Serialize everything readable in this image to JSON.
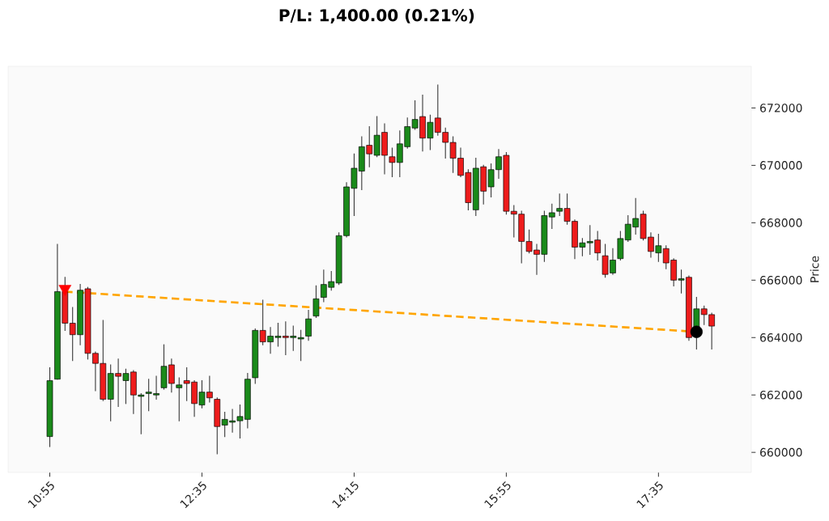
{
  "chart_data": {
    "type": "candlestick",
    "title": "P/L: 1,400.00 (0.21%)",
    "ylabel": "Price",
    "x": [
      10.9167,
      11,
      11.0833,
      11.1667,
      11.25,
      11.3333,
      11.4167,
      11.5,
      11.5833,
      11.6667,
      11.75,
      11.8333,
      11.9167,
      12,
      12.0833,
      12.1667,
      12.25,
      12.3333,
      12.4167,
      12.5,
      12.5833,
      12.6667,
      12.75,
      12.8333,
      12.9167,
      13,
      13.0833,
      13.1667,
      13.25,
      13.3333,
      13.4167,
      13.5,
      13.5833,
      13.6667,
      13.75,
      13.8333,
      13.9167,
      14,
      14.0833,
      14.1667,
      14.25,
      14.3333,
      14.4167,
      14.5,
      14.5833,
      14.6667,
      14.75,
      14.8333,
      14.9167,
      15,
      15.0833,
      15.1667,
      15.25,
      15.3333,
      15.4167,
      15.5,
      15.5833,
      15.6667,
      15.75,
      15.8333,
      15.9167,
      16,
      16.0833,
      16.1667,
      16.25,
      16.3333,
      16.4167,
      16.5,
      16.5833,
      16.6667,
      16.75,
      16.8333,
      16.9167,
      17,
      17.0833,
      17.1667,
      17.25,
      17.3333,
      17.4167,
      17.5,
      17.5833,
      17.6667,
      17.75,
      17.8333,
      17.9167,
      18,
      18.0833,
      18.1667
    ],
    "ohlc": [
      [
        660550,
        662950,
        660200,
        662500
      ],
      [
        662550,
        667250,
        662550,
        665600
      ],
      [
        665600,
        666100,
        664250,
        664500
      ],
      [
        664500,
        665050,
        663200,
        664100
      ],
      [
        664100,
        665850,
        663750,
        665650
      ],
      [
        665700,
        665750,
        663250,
        663450
      ],
      [
        663450,
        663500,
        662150,
        663100
      ],
      [
        663100,
        664600,
        661800,
        661850
      ],
      [
        661850,
        663050,
        661100,
        662750
      ],
      [
        662750,
        663250,
        661600,
        662650
      ],
      [
        662500,
        662900,
        661700,
        662750
      ],
      [
        662800,
        662850,
        661350,
        662000
      ],
      [
        661950,
        662050,
        660650,
        662000
      ],
      [
        662050,
        662550,
        661450,
        662100
      ],
      [
        662000,
        662650,
        661850,
        662050
      ],
      [
        662250,
        663750,
        662200,
        663000
      ],
      [
        663050,
        663250,
        662100,
        662400
      ],
      [
        662250,
        662600,
        661100,
        662350
      ],
      [
        662500,
        662950,
        661800,
        662400
      ],
      [
        662450,
        662500,
        661250,
        661700
      ],
      [
        661650,
        662500,
        661550,
        662100
      ],
      [
        662100,
        662650,
        661750,
        661900
      ],
      [
        661850,
        661900,
        659950,
        660900
      ],
      [
        660950,
        661400,
        660550,
        661150
      ],
      [
        661050,
        661500,
        660700,
        661100
      ],
      [
        661100,
        661650,
        660500,
        661250
      ],
      [
        661150,
        662750,
        660850,
        662550
      ],
      [
        662600,
        664300,
        662400,
        664250
      ],
      [
        664250,
        665300,
        663750,
        663850
      ],
      [
        663850,
        664350,
        663450,
        664050
      ],
      [
        664000,
        664500,
        663700,
        664050
      ],
      [
        664050,
        664550,
        663400,
        664000
      ],
      [
        664000,
        664400,
        663550,
        664050
      ],
      [
        663950,
        664250,
        663200,
        664000
      ],
      [
        664050,
        664950,
        663900,
        664650
      ],
      [
        664750,
        665800,
        664700,
        665350
      ],
      [
        665400,
        666350,
        665250,
        665850
      ],
      [
        665750,
        666300,
        665650,
        665950
      ],
      [
        665900,
        667650,
        665850,
        667550
      ],
      [
        667550,
        669400,
        667500,
        669250
      ],
      [
        669200,
        670400,
        668250,
        669900
      ],
      [
        669800,
        671000,
        669150,
        670650
      ],
      [
        670700,
        671350,
        669950,
        670400
      ],
      [
        670350,
        671700,
        670300,
        671050
      ],
      [
        671150,
        671450,
        669700,
        670350
      ],
      [
        670300,
        670600,
        669600,
        670100
      ],
      [
        670100,
        671200,
        669600,
        670750
      ],
      [
        670650,
        671650,
        670600,
        671350
      ],
      [
        671300,
        672250,
        671250,
        671600
      ],
      [
        671700,
        672450,
        670500,
        670950
      ],
      [
        670950,
        671750,
        670550,
        671500
      ],
      [
        671650,
        672800,
        671050,
        671150
      ],
      [
        671150,
        671300,
        670250,
        670800
      ],
      [
        670800,
        671000,
        669750,
        670250
      ],
      [
        670250,
        670600,
        669600,
        669650
      ],
      [
        669750,
        669850,
        668450,
        668700
      ],
      [
        668450,
        670250,
        668250,
        669900
      ],
      [
        669950,
        670000,
        668650,
        669100
      ],
      [
        669250,
        670050,
        668900,
        669850
      ],
      [
        669850,
        670550,
        669550,
        670300
      ],
      [
        670350,
        670450,
        668300,
        668400
      ],
      [
        668400,
        668600,
        667500,
        668300
      ],
      [
        668300,
        668400,
        666600,
        667350
      ],
      [
        667350,
        667750,
        666950,
        667000
      ],
      [
        667050,
        667250,
        666200,
        666900
      ],
      [
        666900,
        668400,
        666650,
        668250
      ],
      [
        668200,
        668650,
        667800,
        668350
      ],
      [
        668400,
        669000,
        668250,
        668500
      ],
      [
        668500,
        669000,
        667950,
        668050
      ],
      [
        668050,
        668100,
        666750,
        667150
      ],
      [
        667150,
        667450,
        666850,
        667300
      ],
      [
        667300,
        667900,
        666900,
        667350
      ],
      [
        667400,
        667700,
        666700,
        666950
      ],
      [
        666850,
        667250,
        666100,
        666200
      ],
      [
        666250,
        667100,
        666200,
        666700
      ],
      [
        666750,
        667700,
        666700,
        667450
      ],
      [
        667400,
        668250,
        667350,
        667950
      ],
      [
        667850,
        668850,
        667600,
        668150
      ],
      [
        668300,
        668400,
        667400,
        667450
      ],
      [
        667500,
        667650,
        666800,
        667000
      ],
      [
        666950,
        667600,
        666650,
        667200
      ],
      [
        667100,
        667200,
        666400,
        666600
      ],
      [
        666700,
        666750,
        665800,
        666000
      ],
      [
        666000,
        666350,
        665550,
        666050
      ],
      [
        666100,
        666150,
        663900,
        664000
      ],
      [
        664200,
        665400,
        663600,
        665000
      ],
      [
        665000,
        665100,
        664450,
        664800
      ],
      [
        664800,
        664850,
        663600,
        664400
      ]
    ],
    "colors": [
      "#1a8a1a",
      "#1a8a1a",
      "#ee1c1c",
      "#ee1c1c",
      "#1a8a1a",
      "#ee1c1c",
      "#ee1c1c",
      "#ee1c1c",
      "#1a8a1a",
      "#ee1c1c",
      "#1a8a1a",
      "#ee1c1c",
      "#1a8a1a",
      "#1a8a1a",
      "#1a8a1a",
      "#1a8a1a",
      "#ee1c1c",
      "#1a8a1a",
      "#ee1c1c",
      "#ee1c1c",
      "#1a8a1a",
      "#ee1c1c",
      "#ee1c1c",
      "#1a8a1a",
      "#1a8a1a",
      "#1a8a1a",
      "#1a8a1a",
      "#1a8a1a",
      "#ee1c1c",
      "#1a8a1a",
      "#1a8a1a",
      "#ee1c1c",
      "#1a8a1a",
      "#1a8a1a",
      "#1a8a1a",
      "#1a8a1a",
      "#1a8a1a",
      "#1a8a1a",
      "#1a8a1a",
      "#1a8a1a",
      "#1a8a1a",
      "#1a8a1a",
      "#ee1c1c",
      "#1a8a1a",
      "#ee1c1c",
      "#ee1c1c",
      "#1a8a1a",
      "#1a8a1a",
      "#1a8a1a",
      "#ee1c1c",
      "#1a8a1a",
      "#ee1c1c",
      "#ee1c1c",
      "#ee1c1c",
      "#ee1c1c",
      "#ee1c1c",
      "#1a8a1a",
      "#ee1c1c",
      "#1a8a1a",
      "#1a8a1a",
      "#ee1c1c",
      "#ee1c1c",
      "#ee1c1c",
      "#ee1c1c",
      "#ee1c1c",
      "#1a8a1a",
      "#1a8a1a",
      "#1a8a1a",
      "#ee1c1c",
      "#ee1c1c",
      "#1a8a1a",
      "#1a8a1a",
      "#ee1c1c",
      "#ee1c1c",
      "#1a8a1a",
      "#1a8a1a",
      "#1a8a1a",
      "#1a8a1a",
      "#ee1c1c",
      "#ee1c1c",
      "#1a8a1a",
      "#ee1c1c",
      "#ee1c1c",
      "#1a8a1a",
      "#ee1c1c",
      "#1a8a1a",
      "#ee1c1c",
      "#ee1c1c"
    ],
    "series": [
      {
        "type": "line",
        "values": [
          null,
          null,
          665600,
          null,
          null,
          null,
          null,
          null,
          null,
          null,
          null,
          null,
          null,
          null,
          null,
          null,
          null,
          null,
          null,
          null,
          null,
          null,
          null,
          null,
          null,
          null,
          null,
          null,
          null,
          null,
          null,
          null,
          null,
          null,
          null,
          null,
          null,
          null,
          null,
          null,
          null,
          null,
          null,
          null,
          null,
          null,
          null,
          null,
          null,
          null,
          null,
          null,
          null,
          null,
          null,
          null,
          null,
          null,
          null,
          null,
          null,
          null,
          null,
          null,
          null,
          null,
          null,
          null,
          null,
          null,
          null,
          null,
          null,
          null,
          null,
          null,
          null,
          null,
          null,
          null,
          null,
          null,
          null,
          null,
          null,
          664200,
          null,
          null
        ],
        "color": "#ffa500",
        "line_style": "dashed"
      },
      {
        "type": "scatter",
        "values": [
          null,
          null,
          665700,
          null,
          null,
          null,
          null,
          null,
          null,
          null,
          null,
          null,
          null,
          null,
          null,
          null,
          null,
          null,
          null,
          null,
          null,
          null,
          null,
          null,
          null,
          null,
          null,
          null,
          null,
          null,
          null,
          null,
          null,
          null,
          null,
          null,
          null,
          null,
          null,
          null,
          null,
          null,
          null,
          null,
          null,
          null,
          null,
          null,
          null,
          null,
          null,
          null,
          null,
          null,
          null,
          null,
          null,
          null,
          null,
          null,
          null,
          null,
          null,
          null,
          null,
          null,
          null,
          null,
          null,
          null,
          null,
          null,
          null,
          null,
          null,
          null,
          null,
          null,
          null,
          null,
          null,
          null,
          null,
          null,
          null,
          null,
          null,
          null
        ],
        "color": "#ff0000",
        "marker": "triangle"
      },
      {
        "type": "scatter",
        "values": [
          null,
          null,
          null,
          null,
          null,
          null,
          null,
          null,
          null,
          null,
          null,
          null,
          null,
          null,
          null,
          null,
          null,
          null,
          null,
          null,
          null,
          null,
          null,
          null,
          null,
          null,
          null,
          null,
          null,
          null,
          null,
          null,
          null,
          null,
          null,
          null,
          null,
          null,
          null,
          null,
          null,
          null,
          null,
          null,
          null,
          null,
          null,
          null,
          null,
          null,
          null,
          null,
          null,
          null,
          null,
          null,
          null,
          null,
          null,
          null,
          null,
          null,
          null,
          null,
          null,
          null,
          null,
          null,
          null,
          null,
          null,
          null,
          null,
          null,
          null,
          null,
          null,
          null,
          null,
          null,
          null,
          null,
          null,
          null,
          null,
          664200,
          null,
          null
        ],
        "color": "#000000",
        "marker": "circle"
      }
    ],
    "xlim": [
      10.46,
      18.6
    ],
    "xticks": [
      {
        "value": 10.9167,
        "label": "10:55"
      },
      {
        "value": 12.5833,
        "label": "12:35"
      },
      {
        "value": 14.25,
        "label": "14:15"
      },
      {
        "value": 15.9167,
        "label": "15:55"
      },
      {
        "value": 17.5833,
        "label": "17:35"
      }
    ],
    "ylim": [
      659300,
      673450
    ],
    "yticks": [
      660000,
      662000,
      664000,
      666000,
      668000,
      670000,
      672000
    ]
  }
}
